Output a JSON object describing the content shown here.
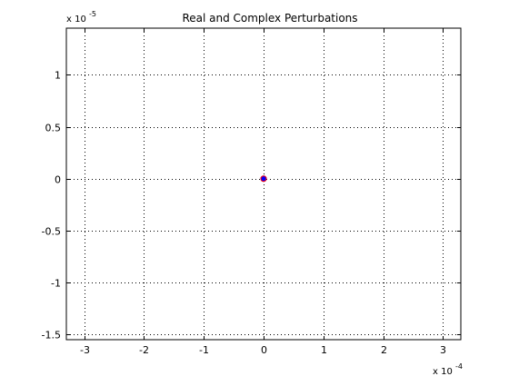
{
  "chart_data": {
    "type": "scatter",
    "title": "Real and Complex Perturbations",
    "xlabel": "",
    "ylabel": "",
    "xlim": [
      -0.00033,
      0.00033
    ],
    "ylim": [
      -1.55e-05,
      1.45e-05
    ],
    "x_ticks": [
      -0.0003,
      -0.0002,
      -0.0001,
      0,
      0.0001,
      0.0002,
      0.0003
    ],
    "x_tick_labels": [
      "-3",
      "-2",
      "-1",
      "0",
      "1",
      "2",
      "3"
    ],
    "x_multiplier": {
      "base": "x 10",
      "exponent": "-4"
    },
    "y_ticks": [
      -1.5e-05,
      -1e-05,
      -5e-06,
      0,
      5e-06,
      1e-05
    ],
    "y_tick_labels": [
      "-1.5",
      "-1",
      "-0.5",
      "0",
      "0.5",
      "1"
    ],
    "y_multiplier": {
      "base": "x 10",
      "exponent": "-5"
    },
    "grid": true,
    "series": [
      {
        "marker_colors": [
          "#0000ff",
          "#ff0000"
        ],
        "x": [
          0,
          0
        ],
        "y": [
          0,
          0
        ]
      }
    ]
  }
}
